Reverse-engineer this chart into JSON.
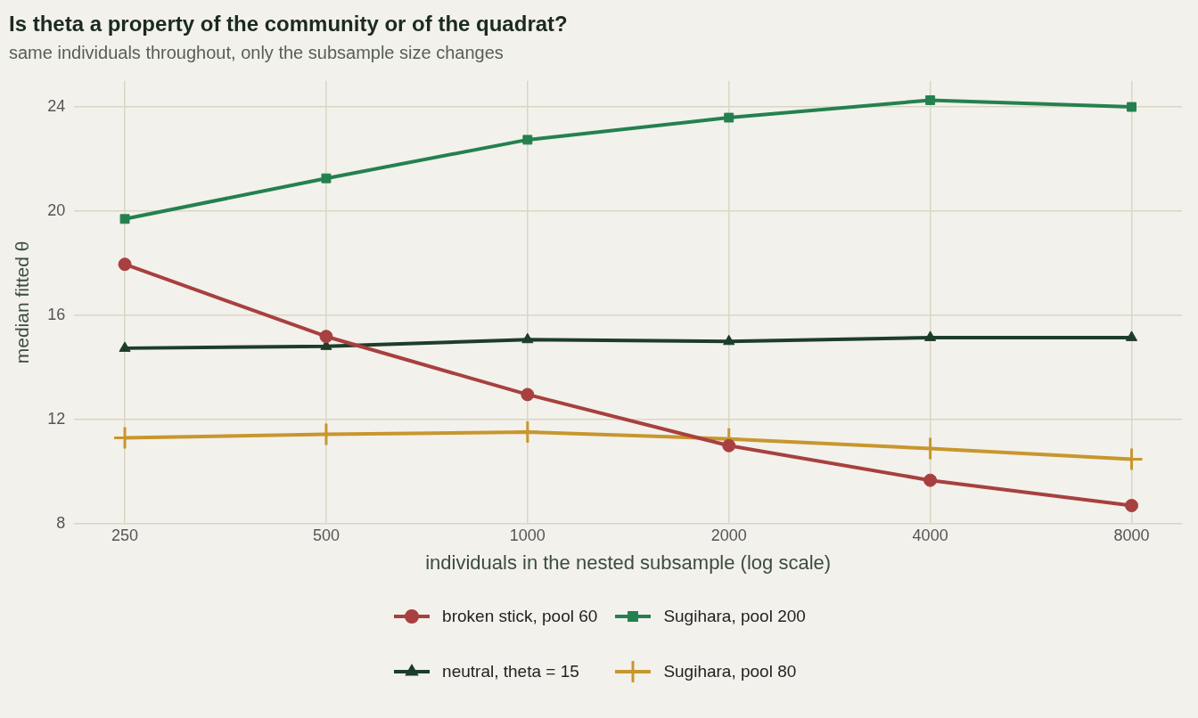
{
  "chart_data": {
    "type": "line",
    "title": "Is theta a property of the community or of the quadrat?",
    "subtitle": "same individuals throughout, only the subsample size changes",
    "xlabel": "individuals in the nested subsample (log scale)",
    "ylabel": "median fitted θ",
    "x": [
      250,
      500,
      1000,
      2000,
      4000,
      8000
    ],
    "log": "x",
    "xlim": [
      210,
      9514
    ],
    "xticks": [
      250,
      500,
      1000,
      2000,
      4000,
      8000
    ],
    "ylim": [
      8,
      25
    ],
    "yticks": [
      8,
      12,
      16,
      20,
      24
    ],
    "grid": true,
    "legend": "bottom",
    "line_style": "solid",
    "series": [
      {
        "name": "broken stick, pool 60",
        "color": "#a84040",
        "marker": "circle",
        "values": [
          17.96,
          15.19,
          12.96,
          11.0,
          9.67,
          8.7
        ]
      },
      {
        "name": "Sugihara, pool 200",
        "color": "#24814f",
        "marker": "square",
        "values": [
          19.7,
          21.26,
          22.74,
          23.59,
          24.26,
          24.0
        ]
      },
      {
        "name": "neutral, theta = 15",
        "color": "#1d3d2a",
        "marker": "triangle",
        "values": [
          14.74,
          14.81,
          15.07,
          15.0,
          15.15,
          15.15
        ]
      },
      {
        "name": "Sugihara, pool 80",
        "color": "#c8962e",
        "marker": "cross",
        "values": [
          11.3,
          11.44,
          11.52,
          11.26,
          10.89,
          10.48
        ]
      }
    ]
  }
}
